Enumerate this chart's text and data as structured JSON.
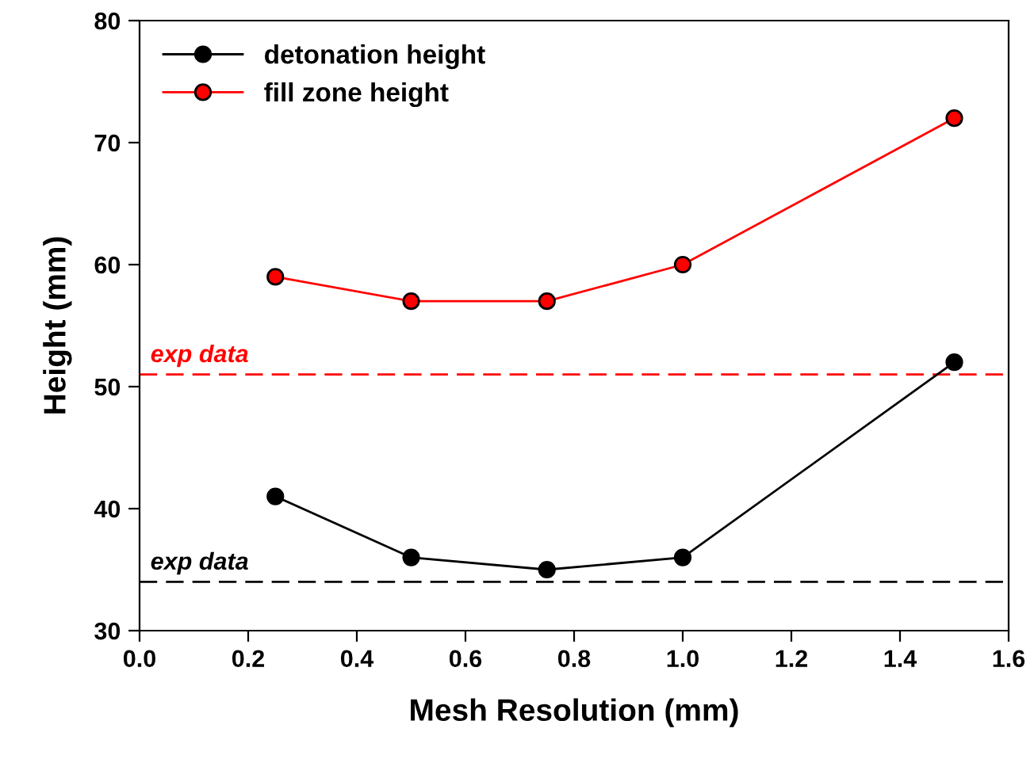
{
  "chart_data": {
    "type": "line",
    "xlabel": "Mesh Resolution (mm)",
    "ylabel": "Height (mm)",
    "x": [
      0.25,
      0.5,
      0.75,
      1.0,
      1.5
    ],
    "series": [
      {
        "name": "detonation height",
        "color": "#000000",
        "values": [
          41,
          36,
          35,
          36,
          52
        ]
      },
      {
        "name": "fill zone height",
        "color": "#ff0000",
        "values": [
          59,
          57,
          57,
          60,
          72
        ]
      }
    ],
    "xlim": [
      0,
      1.6
    ],
    "ylim": [
      30,
      80
    ],
    "xticks": [
      {
        "value": 0,
        "label": "0.0"
      },
      {
        "value": 0.2,
        "label": "0.2"
      },
      {
        "value": 0.4,
        "label": "0.4"
      },
      {
        "value": 0.6,
        "label": "0.6"
      },
      {
        "value": 0.8,
        "label": "0.8"
      },
      {
        "value": 1.0,
        "label": "1.0"
      },
      {
        "value": 1.2,
        "label": "1.2"
      },
      {
        "value": 1.4,
        "label": "1.4"
      },
      {
        "value": 1.6,
        "label": "1.6"
      }
    ],
    "yticks": [
      30,
      40,
      50,
      60,
      70,
      80
    ],
    "ref_lines": [
      {
        "axis": "y",
        "value": 51,
        "label": "exp data",
        "color": "#ff0000",
        "line_style": "dashed"
      },
      {
        "axis": "y",
        "value": 34,
        "label": "exp data",
        "color": "#000000",
        "line_style": "dashed"
      }
    ],
    "marker": "circle",
    "line_style": "solid",
    "grid": false,
    "legend": "top left"
  }
}
